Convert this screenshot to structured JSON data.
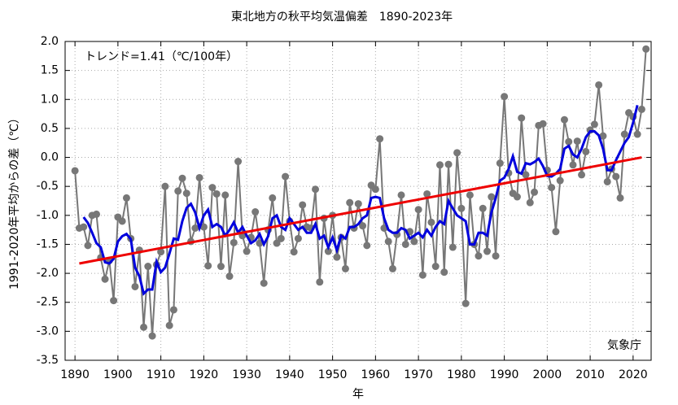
{
  "chart_data": {
    "type": "line",
    "title": "東北地方の秋平均気温偏差　1890-2023年",
    "y_label": "1991-2020年平均からの差（℃）",
    "x_label": "年",
    "annotations": [
      "トレンド=1.41（℃/100年）",
      "気象庁"
    ],
    "xlim": [
      1887.7,
      2024.2
    ],
    "ylim": [
      -3.5,
      2.0
    ],
    "xticks": [
      1890,
      1900,
      1910,
      1920,
      1930,
      1940,
      1950,
      1960,
      1970,
      1980,
      1990,
      2000,
      2010,
      2020
    ],
    "yticks": [
      {
        "value": 2.0,
        "label": "2.0"
      },
      {
        "value": 1.5,
        "label": "1.5"
      },
      {
        "value": 1.0,
        "label": "1.0"
      },
      {
        "value": 0.5,
        "label": "0.5"
      },
      {
        "value": 0.0,
        "label": "0.0"
      },
      {
        "value": -0.5,
        "label": "-0.5"
      },
      {
        "value": -1.0,
        "label": "-1.0"
      },
      {
        "value": -1.5,
        "label": "-1.5"
      },
      {
        "value": -2.0,
        "label": "-2.0"
      },
      {
        "value": -2.5,
        "label": "-2.5"
      },
      {
        "value": -3.0,
        "label": "-3.0"
      },
      {
        "value": -3.5,
        "label": "-3.5"
      }
    ],
    "grid": true,
    "series": [
      {
        "color": "#777777",
        "markers": true,
        "x": [
          1890,
          1891,
          1892,
          1893,
          1894,
          1895,
          1896,
          1897,
          1898,
          1899,
          1900,
          1901,
          1902,
          1903,
          1904,
          1905,
          1906,
          1907,
          1908,
          1909,
          1910,
          1911,
          1912,
          1913,
          1914,
          1915,
          1916,
          1917,
          1918,
          1919,
          1920,
          1921,
          1922,
          1923,
          1924,
          1925,
          1926,
          1927,
          1928,
          1929,
          1930,
          1931,
          1932,
          1933,
          1934,
          1935,
          1936,
          1937,
          1938,
          1939,
          1940,
          1941,
          1942,
          1943,
          1944,
          1945,
          1946,
          1947,
          1948,
          1949,
          1950,
          1951,
          1952,
          1953,
          1954,
          1955,
          1956,
          1957,
          1958,
          1959,
          1960,
          1961,
          1962,
          1963,
          1964,
          1965,
          1966,
          1967,
          1968,
          1969,
          1970,
          1971,
          1972,
          1973,
          1974,
          1975,
          1976,
          1977,
          1978,
          1979,
          1980,
          1981,
          1982,
          1983,
          1984,
          1985,
          1986,
          1987,
          1988,
          1989,
          1990,
          1991,
          1992,
          1993,
          1994,
          1995,
          1996,
          1997,
          1998,
          1999,
          2000,
          2001,
          2002,
          2003,
          2004,
          2005,
          2006,
          2007,
          2008,
          2009,
          2010,
          2011,
          2012,
          2013,
          2014,
          2015,
          2016,
          2017,
          2018,
          2019,
          2020,
          2021,
          2022,
          2023
        ],
        "values": [
          -0.23,
          -1.22,
          -1.2,
          -1.52,
          -1.0,
          -0.98,
          -1.73,
          -2.1,
          -1.78,
          -2.47,
          -1.03,
          -1.1,
          -0.7,
          -1.4,
          -2.23,
          -1.6,
          -2.93,
          -1.88,
          -3.08,
          -1.85,
          -1.63,
          -0.5,
          -2.9,
          -2.63,
          -0.58,
          -0.36,
          -0.62,
          -1.45,
          -1.22,
          -0.35,
          -1.2,
          -1.87,
          -0.52,
          -0.63,
          -1.88,
          -0.65,
          -2.05,
          -1.47,
          -0.07,
          -1.35,
          -1.62,
          -1.38,
          -0.94,
          -1.48,
          -2.17,
          -1.25,
          -0.7,
          -1.48,
          -1.4,
          -0.33,
          -1.1,
          -1.63,
          -1.4,
          -0.82,
          -1.2,
          -1.22,
          -0.55,
          -2.15,
          -1.05,
          -1.62,
          -1.0,
          -1.72,
          -1.38,
          -1.92,
          -0.78,
          -1.22,
          -0.8,
          -1.18,
          -1.52,
          -0.48,
          -0.55,
          0.32,
          -1.22,
          -1.45,
          -1.92,
          -1.33,
          -0.65,
          -1.5,
          -1.28,
          -1.45,
          -0.9,
          -2.03,
          -0.63,
          -1.12,
          -1.88,
          -0.13,
          -1.98,
          -0.12,
          -1.55,
          0.08,
          -0.88,
          -2.52,
          -0.65,
          -1.5,
          -1.7,
          -0.88,
          -1.62,
          -0.68,
          -1.7,
          -0.1,
          1.05,
          -0.27,
          -0.62,
          -0.68,
          0.68,
          -0.3,
          -0.78,
          -0.6,
          0.55,
          0.58,
          -0.22,
          -0.52,
          -1.28,
          -0.4,
          0.65,
          0.27,
          -0.13,
          0.28,
          -0.3,
          0.1,
          0.47,
          0.57,
          1.25,
          0.37,
          -0.42,
          -0.2,
          -0.33,
          -0.7,
          0.4,
          0.77,
          0.7,
          0.4,
          0.83,
          1.87
        ]
      },
      {
        "color": "#0000dd",
        "markers": false,
        "x": [
          1892,
          1893,
          1894,
          1895,
          1896,
          1897,
          1898,
          1899,
          1900,
          1901,
          1902,
          1903,
          1904,
          1905,
          1906,
          1907,
          1908,
          1909,
          1910,
          1911,
          1912,
          1913,
          1914,
          1915,
          1916,
          1917,
          1918,
          1919,
          1920,
          1921,
          1922,
          1923,
          1924,
          1925,
          1926,
          1927,
          1928,
          1929,
          1930,
          1931,
          1932,
          1933,
          1934,
          1935,
          1936,
          1937,
          1938,
          1939,
          1940,
          1941,
          1942,
          1943,
          1944,
          1945,
          1946,
          1947,
          1948,
          1949,
          1950,
          1951,
          1952,
          1953,
          1954,
          1955,
          1956,
          1957,
          1958,
          1959,
          1960,
          1961,
          1962,
          1963,
          1964,
          1965,
          1966,
          1967,
          1968,
          1969,
          1970,
          1971,
          1972,
          1973,
          1974,
          1975,
          1976,
          1977,
          1978,
          1979,
          1980,
          1981,
          1982,
          1983,
          1984,
          1985,
          1986,
          1987,
          1988,
          1989,
          1990,
          1991,
          1992,
          1993,
          1994,
          1995,
          1996,
          1997,
          1998,
          1999,
          2000,
          2001,
          2002,
          2003,
          2004,
          2005,
          2006,
          2007,
          2008,
          2009,
          2010,
          2011,
          2012,
          2013,
          2014,
          2015,
          2016,
          2017,
          2018,
          2019,
          2020,
          2021
        ],
        "values": [
          -1.03,
          -1.13,
          -1.3,
          -1.48,
          -1.55,
          -1.81,
          -1.83,
          -1.75,
          -1.45,
          -1.36,
          -1.32,
          -1.41,
          -1.9,
          -2.05,
          -2.35,
          -2.28,
          -2.28,
          -1.8,
          -1.98,
          -1.9,
          -1.66,
          -1.4,
          -1.42,
          -1.1,
          -0.87,
          -0.8,
          -0.95,
          -1.22,
          -1.0,
          -0.9,
          -1.2,
          -1.15,
          -1.2,
          -1.35,
          -1.25,
          -1.12,
          -1.3,
          -1.2,
          -1.35,
          -1.48,
          -1.43,
          -1.32,
          -1.5,
          -1.36,
          -1.05,
          -1.0,
          -1.2,
          -1.25,
          -1.05,
          -1.15,
          -1.25,
          -1.2,
          -1.3,
          -1.3,
          -1.15,
          -1.4,
          -1.35,
          -1.55,
          -1.38,
          -1.6,
          -1.35,
          -1.4,
          -1.2,
          -1.2,
          -1.15,
          -1.05,
          -1.0,
          -0.7,
          -0.68,
          -0.7,
          -1.05,
          -1.25,
          -1.3,
          -1.3,
          -1.22,
          -1.25,
          -1.4,
          -1.35,
          -1.3,
          -1.38,
          -1.25,
          -1.35,
          -1.2,
          -1.1,
          -1.15,
          -0.75,
          -0.88,
          -1.0,
          -1.05,
          -1.1,
          -1.5,
          -1.5,
          -1.3,
          -1.3,
          -1.35,
          -0.95,
          -0.7,
          -0.4,
          -0.35,
          -0.2,
          0.02,
          -0.25,
          -0.28,
          -0.1,
          -0.12,
          -0.08,
          -0.02,
          -0.15,
          -0.32,
          -0.33,
          -0.28,
          -0.2,
          0.15,
          0.2,
          0.05,
          0.0,
          0.15,
          0.35,
          0.45,
          0.45,
          0.38,
          0.15,
          -0.22,
          -0.22,
          -0.05,
          0.1,
          0.25,
          0.35,
          0.6,
          0.9
        ]
      },
      {
        "color": "#ee0000",
        "markers": false,
        "x": [
          1891,
          2022
        ],
        "values": [
          -1.83,
          0.0
        ]
      }
    ]
  }
}
